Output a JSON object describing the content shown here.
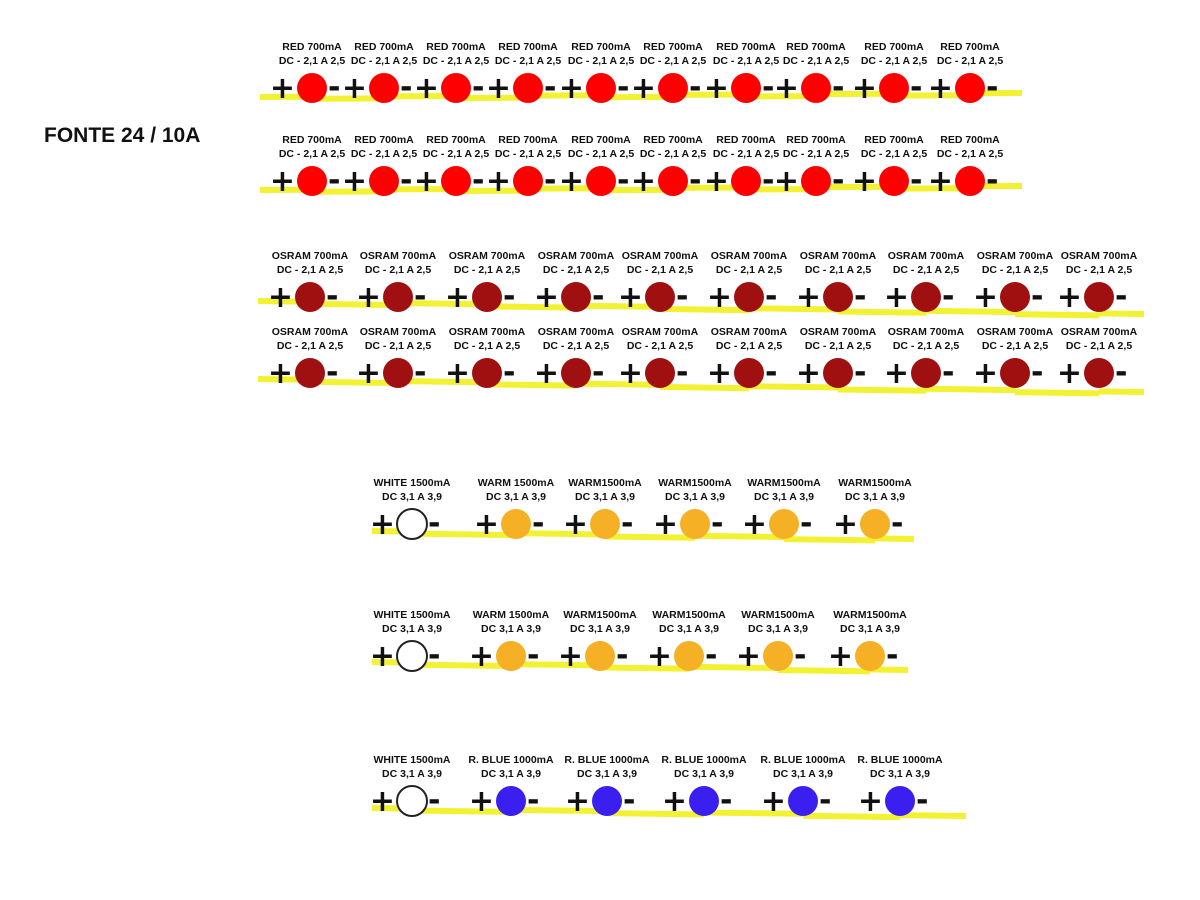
{
  "title": "FONTE 24 / 10A",
  "colors": {
    "wire": "#f2f233",
    "red_led": "#ff0000",
    "osram_led": "#a01010",
    "warm_led": "#f5b025",
    "white_led": "#ffffff",
    "blue_led": "#3a1ff0",
    "outline": "#222222"
  },
  "symbols": {
    "plus": "+",
    "minus": "-"
  },
  "strings": [
    {
      "name": "red-string-1",
      "led_color": "red_led",
      "leds": [
        {
          "line1": "RED 700mA",
          "line2": "DC - 2,1 A 2,5"
        },
        {
          "line1": "RED 700mA",
          "line2": "DC - 2,1 A 2,5"
        },
        {
          "line1": "RED 700mA",
          "line2": "DC - 2,1 A 2,5"
        },
        {
          "line1": "RED 700mA",
          "line2": "DC - 2,1 A 2,5"
        },
        {
          "line1": "RED 700mA",
          "line2": "DC - 2,1 A 2,5"
        },
        {
          "line1": "RED 700mA",
          "line2": "DC - 2,1 A 2,5"
        },
        {
          "line1": "RED 700mA",
          "line2": "DC - 2,1 A 2,5"
        },
        {
          "line1": "RED 700mA",
          "line2": "DC - 2,1 A 2,5"
        },
        {
          "line1": "RED 700mA",
          "line2": "DC - 2,1 A 2,5"
        },
        {
          "line1": "RED 700mA",
          "line2": "DC - 2,1 A 2,5"
        }
      ]
    },
    {
      "name": "red-string-2",
      "led_color": "red_led",
      "leds": [
        {
          "line1": "RED 700mA",
          "line2": "DC - 2,1 A 2,5"
        },
        {
          "line1": "RED 700mA",
          "line2": "DC - 2,1 A 2,5"
        },
        {
          "line1": "RED 700mA",
          "line2": "DC - 2,1 A 2,5"
        },
        {
          "line1": "RED 700mA",
          "line2": "DC - 2,1 A 2,5"
        },
        {
          "line1": "RED 700mA",
          "line2": "DC - 2,1 A 2,5"
        },
        {
          "line1": "RED 700mA",
          "line2": "DC - 2,1 A 2,5"
        },
        {
          "line1": "RED 700mA",
          "line2": "DC - 2,1 A 2,5"
        },
        {
          "line1": "RED 700mA",
          "line2": "DC - 2,1 A 2,5"
        },
        {
          "line1": "RED 700mA",
          "line2": "DC - 2,1 A 2,5"
        },
        {
          "line1": "RED 700mA",
          "line2": "DC - 2,1 A 2,5"
        }
      ]
    },
    {
      "name": "osram-string-1",
      "led_color": "osram_led",
      "leds": [
        {
          "line1": "OSRAM 700mA",
          "line2": "DC - 2,1 A 2,5"
        },
        {
          "line1": "OSRAM 700mA",
          "line2": "DC - 2,1 A 2,5"
        },
        {
          "line1": "OSRAM 700mA",
          "line2": "DC - 2,1 A 2,5"
        },
        {
          "line1": "OSRAM 700mA",
          "line2": "DC - 2,1 A 2,5"
        },
        {
          "line1": "OSRAM 700mA",
          "line2": "DC - 2,1 A 2,5"
        },
        {
          "line1": "OSRAM 700mA",
          "line2": "DC - 2,1 A 2,5"
        },
        {
          "line1": "OSRAM 700mA",
          "line2": "DC - 2,1 A 2,5"
        },
        {
          "line1": "OSRAM 700mA",
          "line2": "DC - 2,1 A 2,5"
        },
        {
          "line1": "OSRAM 700mA",
          "line2": "DC - 2,1 A 2,5"
        },
        {
          "line1": "OSRAM 700mA",
          "line2": "DC - 2,1 A 2,5"
        }
      ]
    },
    {
      "name": "osram-string-2",
      "led_color": "osram_led",
      "leds": [
        {
          "line1": "OSRAM 700mA",
          "line2": "DC - 2,1 A 2,5"
        },
        {
          "line1": "OSRAM 700mA",
          "line2": "DC - 2,1 A 2,5"
        },
        {
          "line1": "OSRAM 700mA",
          "line2": "DC - 2,1 A 2,5"
        },
        {
          "line1": "OSRAM 700mA",
          "line2": "DC - 2,1 A 2,5"
        },
        {
          "line1": "OSRAM 700mA",
          "line2": "DC - 2,1 A 2,5"
        },
        {
          "line1": "OSRAM 700mA",
          "line2": "DC - 2,1 A 2,5"
        },
        {
          "line1": "OSRAM 700mA",
          "line2": "DC - 2,1 A 2,5"
        },
        {
          "line1": "OSRAM 700mA",
          "line2": "DC - 2,1 A 2,5"
        },
        {
          "line1": "OSRAM 700mA",
          "line2": "DC - 2,1 A 2,5"
        },
        {
          "line1": "OSRAM 700mA",
          "line2": "DC - 2,1 A 2,5"
        }
      ]
    },
    {
      "name": "warm-string-1",
      "leds": [
        {
          "line1": "WHITE 1500mA",
          "line2": "DC 3,1 A 3,9",
          "led_color": "white_led"
        },
        {
          "line1": "WARM 1500mA",
          "line2": "DC 3,1 A 3,9",
          "led_color": "warm_led"
        },
        {
          "line1": "WARM1500mA",
          "line2": "DC 3,1 A 3,9",
          "led_color": "warm_led"
        },
        {
          "line1": "WARM1500mA",
          "line2": "DC 3,1 A 3,9",
          "led_color": "warm_led"
        },
        {
          "line1": "WARM1500mA",
          "line2": "DC 3,1 A 3,9",
          "led_color": "warm_led"
        },
        {
          "line1": "WARM1500mA",
          "line2": "DC 3,1 A 3,9",
          "led_color": "warm_led"
        }
      ]
    },
    {
      "name": "warm-string-2",
      "leds": [
        {
          "line1": "WHITE 1500mA",
          "line2": "DC 3,1 A 3,9",
          "led_color": "white_led"
        },
        {
          "line1": "WARM 1500mA",
          "line2": "DC 3,1 A 3,9",
          "led_color": "warm_led"
        },
        {
          "line1": "WARM1500mA",
          "line2": "DC 3,1 A 3,9",
          "led_color": "warm_led"
        },
        {
          "line1": "WARM1500mA",
          "line2": "DC 3,1 A 3,9",
          "led_color": "warm_led"
        },
        {
          "line1": "WARM1500mA",
          "line2": "DC 3,1 A 3,9",
          "led_color": "warm_led"
        },
        {
          "line1": "WARM1500mA",
          "line2": "DC 3,1 A 3,9",
          "led_color": "warm_led"
        }
      ]
    },
    {
      "name": "blue-string",
      "leds": [
        {
          "line1": "WHITE 1500mA",
          "line2": "DC 3,1 A 3,9",
          "led_color": "white_led"
        },
        {
          "line1": "R. BLUE 1000mA",
          "line2": "DC 3,1 A 3,9",
          "led_color": "blue_led"
        },
        {
          "line1": "R. BLUE 1000mA",
          "line2": "DC 3,1 A 3,9",
          "led_color": "blue_led"
        },
        {
          "line1": "R. BLUE 1000mA",
          "line2": "DC 3,1 A 3,9",
          "led_color": "blue_led"
        },
        {
          "line1": "R. BLUE 1000mA",
          "line2": "DC 3,1 A 3,9",
          "led_color": "blue_led"
        },
        {
          "line1": "R. BLUE 1000mA",
          "line2": "DC 3,1 A 3,9",
          "led_color": "blue_led"
        }
      ]
    }
  ]
}
